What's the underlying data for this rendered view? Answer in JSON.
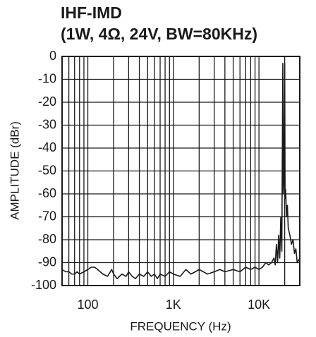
{
  "chart_data": {
    "type": "line",
    "title": "IHF-IMD",
    "subtitle": "(1W, 4Ω, 24V, BW=80KHz)",
    "x_label": "FREQUENCY (Hz)",
    "y_label": "AMPLITUDE (dBr)",
    "log_x": true,
    "grid": true,
    "xlim": [
      50,
      30000
    ],
    "ylim": [
      -100,
      0
    ],
    "xticks": [
      100,
      {
        "value": 1000,
        "label": "1K"
      },
      {
        "value": 10000,
        "label": "10K"
      }
    ],
    "xminor": [
      50,
      60,
      70,
      80,
      90,
      200,
      300,
      400,
      500,
      600,
      700,
      800,
      900,
      2000,
      3000,
      4000,
      5000,
      6000,
      7000,
      8000,
      9000,
      20000
    ],
    "yticks": [
      0,
      -10,
      -20,
      -30,
      -40,
      -50,
      -60,
      -70,
      -80,
      -90,
      -100
    ],
    "x": [
      50,
      55,
      60,
      65,
      70,
      75,
      80,
      90,
      100,
      110,
      120,
      130,
      150,
      170,
      190,
      200,
      220,
      250,
      280,
      300,
      330,
      360,
      400,
      450,
      500,
      550,
      600,
      650,
      700,
      800,
      900,
      1000,
      1200,
      1400,
      1600,
      1800,
      2000,
      2500,
      3000,
      3500,
      4000,
      5000,
      6000,
      7000,
      8000,
      9000,
      10000,
      11000,
      12000,
      13000,
      14000,
      15000,
      15500,
      16000,
      16500,
      17000,
      17500,
      18000,
      18500,
      19000,
      19200,
      19500,
      20000,
      20200,
      20500,
      21000,
      21500,
      22000,
      23000,
      24000,
      25000,
      26000,
      27000,
      28000,
      30000
    ],
    "series": [
      {
        "color": "#1a1a1a",
        "values": [
          -93,
          -94,
          -94,
          -95,
          -95,
          -94,
          -95,
          -94,
          -93,
          -92,
          -92,
          -93,
          -95,
          -96,
          -93,
          -95,
          -97,
          -95,
          -96,
          -94,
          -96,
          -97,
          -95,
          -96,
          -94,
          -96,
          -95,
          -97,
          -95,
          -96,
          -94,
          -95,
          -96,
          -93,
          -95,
          -94,
          -93,
          -95,
          -94,
          -93,
          -94,
          -93,
          -94,
          -92,
          -93,
          -92,
          -93,
          -92,
          -90,
          -91,
          -90,
          -88,
          -91,
          -82,
          -90,
          -78,
          -88,
          -70,
          -85,
          -3,
          -60,
          -55,
          -3,
          -62,
          -58,
          -70,
          -65,
          -75,
          -78,
          -82,
          -80,
          -86,
          -84,
          -90,
          -88
        ]
      }
    ]
  }
}
